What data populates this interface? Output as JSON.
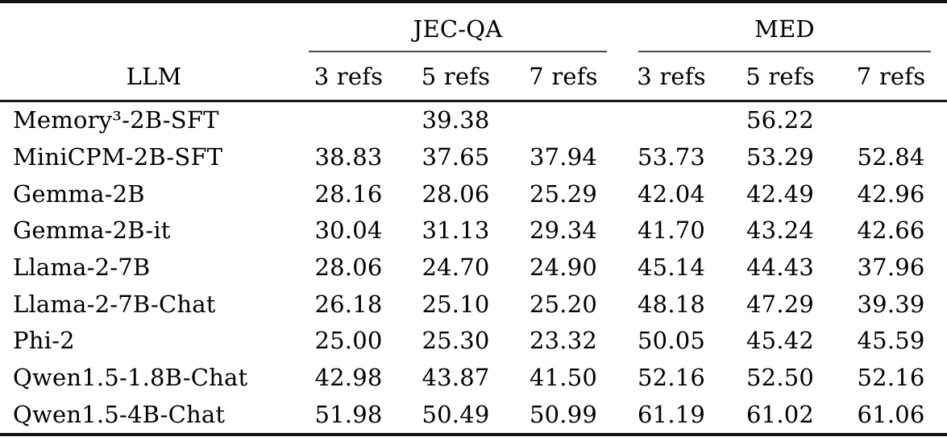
{
  "table": {
    "llm_header": "LLM",
    "groups": [
      {
        "label": "JEC-QA"
      },
      {
        "label": "MED"
      }
    ],
    "sub_headers": [
      "3 refs",
      "5 refs",
      "7 refs",
      "3 refs",
      "5 refs",
      "7 refs"
    ],
    "rows": [
      {
        "llm": "Memory³-2B-SFT",
        "scores": [
          "",
          "39.38",
          "",
          "",
          "56.22",
          ""
        ]
      },
      {
        "llm": "MiniCPM-2B-SFT",
        "scores": [
          "38.83",
          "37.65",
          "37.94",
          "53.73",
          "53.29",
          "52.84"
        ]
      },
      {
        "llm": "Gemma-2B",
        "scores": [
          "28.16",
          "28.06",
          "25.29",
          "42.04",
          "42.49",
          "42.96"
        ]
      },
      {
        "llm": "Gemma-2B-it",
        "scores": [
          "30.04",
          "31.13",
          "29.34",
          "41.70",
          "43.24",
          "42.66"
        ]
      },
      {
        "llm": "Llama-2-7B",
        "scores": [
          "28.06",
          "24.70",
          "24.90",
          "45.14",
          "44.43",
          "37.96"
        ]
      },
      {
        "llm": "Llama-2-7B-Chat",
        "scores": [
          "26.18",
          "25.10",
          "25.20",
          "48.18",
          "47.29",
          "39.39"
        ]
      },
      {
        "llm": "Phi-2",
        "scores": [
          "25.00",
          "25.30",
          "23.32",
          "50.05",
          "45.42",
          "45.59"
        ]
      },
      {
        "llm": "Qwen1.5-1.8B-Chat",
        "scores": [
          "42.98",
          "43.87",
          "41.50",
          "52.16",
          "52.50",
          "52.16"
        ]
      },
      {
        "llm": "Qwen1.5-4B-Chat",
        "scores": [
          "51.98",
          "50.49",
          "50.99",
          "61.19",
          "61.02",
          "61.06"
        ]
      }
    ],
    "colors": {
      "rule_heavy": "#141414",
      "rule_mid": "#1a1a1a",
      "rule_group": "#4a4a4a",
      "text": "#000000",
      "background": "#ffffff"
    }
  }
}
